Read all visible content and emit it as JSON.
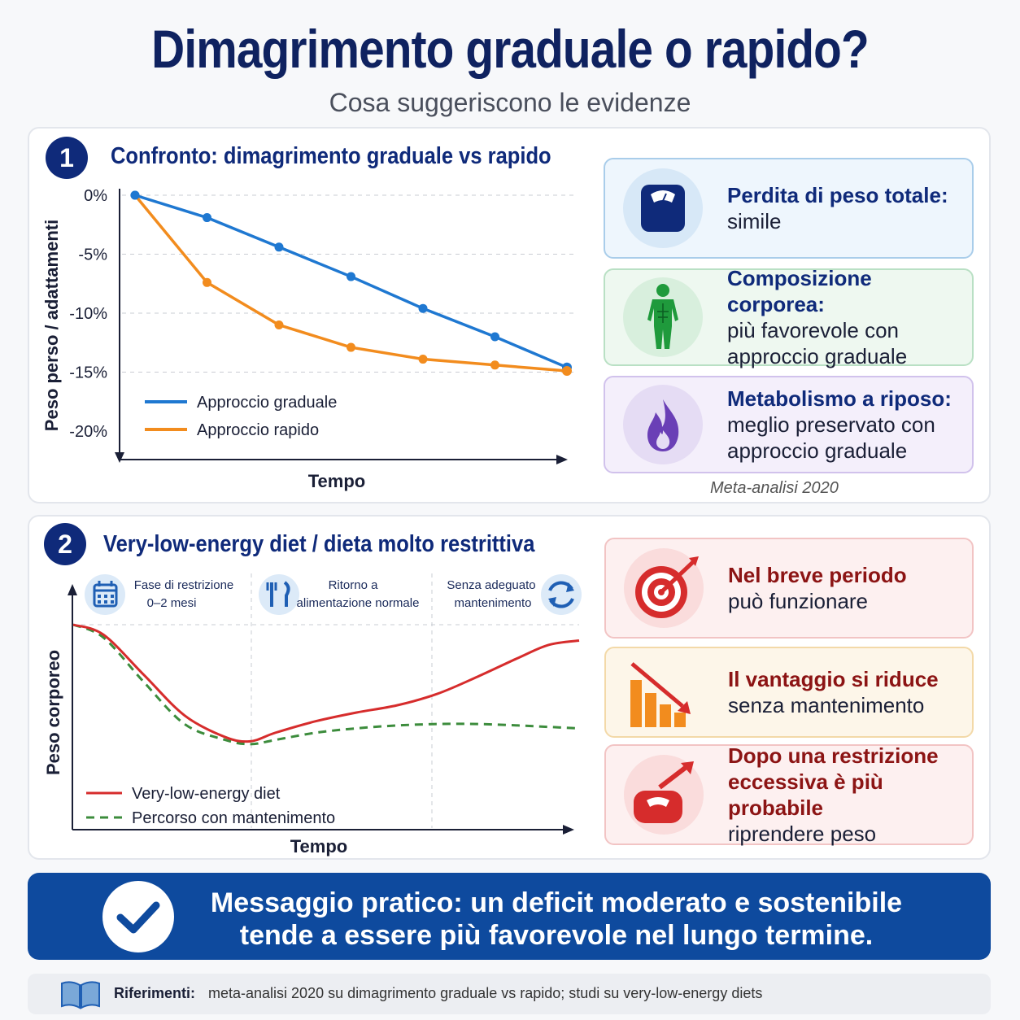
{
  "title": "Dimagrimento graduale o rapido?",
  "subtitle": "Cosa suggeriscono le evidenze",
  "section1": {
    "number": "1",
    "title": "Confronto: dimagrimento graduale vs rapido",
    "source": "Meta-analisi 2020",
    "cards": [
      {
        "head": "Perdita di peso totale:",
        "body": [
          "simile"
        ],
        "icon": "scale-icon"
      },
      {
        "head": "Composizione corporea:",
        "body": [
          "più favorevole con",
          "approccio graduale"
        ],
        "icon": "body-icon"
      },
      {
        "head": "Metabolismo a riposo:",
        "body": [
          "meglio preservato con",
          "approccio graduale"
        ],
        "icon": "flame-icon"
      }
    ]
  },
  "section2": {
    "number": "2",
    "title": "Very-low-energy diet / dieta molto restrittiva",
    "phases": [
      {
        "lines": [
          "Fase di restrizione",
          "0–2 mesi"
        ],
        "icon": "calendar-icon"
      },
      {
        "lines": [
          "Ritorno a",
          "alimentazione normale"
        ],
        "icon": "cutlery-icon"
      },
      {
        "lines": [
          "Senza adeguato",
          "mantenimento"
        ],
        "icon": "cycle-icon"
      }
    ],
    "cards": [
      {
        "head": [
          "Nel breve periodo"
        ],
        "body": [
          "può funzionare"
        ],
        "icon": "target-icon"
      },
      {
        "head": [
          "Il vantaggio si riduce"
        ],
        "body": [
          "senza mantenimento"
        ],
        "icon": "declining-bars-icon"
      },
      {
        "head": [
          "Dopo una restrizione",
          "eccessiva è più probabile"
        ],
        "body": [
          "riprendere peso"
        ],
        "icon": "scale-up-icon"
      }
    ]
  },
  "banner": {
    "line1": "Messaggio pratico: un deficit moderato e sostenibile",
    "line2": "tende a essere più favorevole nel lungo termine."
  },
  "references": {
    "label": "Riferimenti:",
    "text": "meta-analisi 2020 su dimagrimento graduale vs rapido; studi su very-low-energy diets"
  },
  "colors": {
    "gradual": "#1f78d1",
    "rapid": "#f28c1e",
    "vled": "#d62c2c",
    "maintenance": "#3c8c3c",
    "navy": "#0f2a7a",
    "banner": "#0e4a9e"
  },
  "chart_data": [
    {
      "type": "line",
      "xlabel": "Tempo",
      "ylabel": "Peso perso / adattamenti",
      "yticks": [
        "0%",
        "-5%",
        "-10%",
        "-15%",
        "-20%"
      ],
      "ylim": [
        -22,
        0
      ],
      "x": [
        0,
        1,
        2,
        3,
        4,
        5,
        6
      ],
      "series": [
        {
          "name": "Approccio graduale",
          "values": [
            0,
            -1.9,
            -4.4,
            -6.9,
            -9.6,
            -12.0,
            -14.6
          ]
        },
        {
          "name": "Approccio rapido",
          "values": [
            0,
            -7.4,
            -11.0,
            -12.9,
            -13.9,
            -14.4,
            -14.9
          ]
        }
      ],
      "grid": true,
      "legend": "bottom-left"
    },
    {
      "type": "line",
      "xlabel": "Tempo",
      "ylabel": "Peso corporeo",
      "x": [
        0,
        0.06,
        0.14,
        0.22,
        0.3,
        0.35,
        0.4,
        0.48,
        0.56,
        0.64,
        0.72,
        0.8,
        0.88,
        0.94,
        1.0
      ],
      "series": [
        {
          "name": "Very-low-energy diet",
          "values": [
            1.0,
            0.93,
            0.65,
            0.37,
            0.22,
            0.19,
            0.25,
            0.33,
            0.39,
            0.44,
            0.52,
            0.64,
            0.77,
            0.86,
            0.89
          ]
        },
        {
          "name": "Percorso con mantenimento",
          "values": [
            1.0,
            0.91,
            0.6,
            0.31,
            0.2,
            0.17,
            0.2,
            0.25,
            0.28,
            0.3,
            0.31,
            0.31,
            0.3,
            0.29,
            0.28
          ]
        }
      ],
      "grid": true,
      "legend": "bottom-left"
    }
  ]
}
